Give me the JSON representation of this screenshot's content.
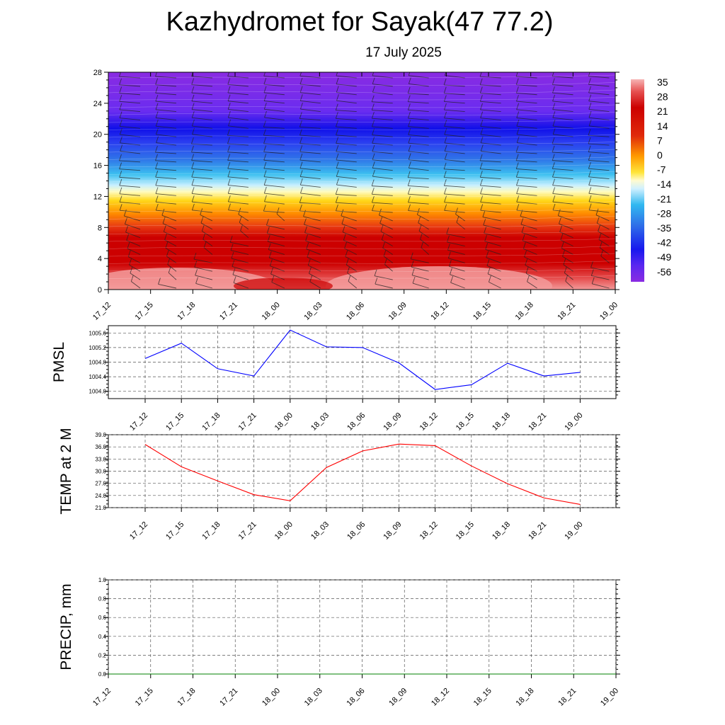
{
  "title": "Kazhydromet for Sayak(47 77.2)",
  "subtitle": "17 July 2025",
  "chart_data": [
    {
      "type": "heatmap",
      "description_units": "temperature with wind barbs, height levels",
      "x_tick_labels": [
        "17_12",
        "17_15",
        "17_18",
        "17_21",
        "18_00",
        "18_03",
        "18_06",
        "18_09",
        "18_12",
        "18_15",
        "18_18",
        "18_21",
        "19_00"
      ],
      "y_tick_labels": [
        "0",
        "4",
        "8",
        "12",
        "16",
        "20",
        "24",
        "28"
      ],
      "ylim": [
        0,
        28
      ],
      "colorbar_labels": [
        "35",
        "28",
        "21",
        "14",
        "7",
        "0",
        "-7",
        "-14",
        "-21",
        "-28",
        "-35",
        "-42",
        "-49",
        "-56"
      ],
      "colorbar_range": [
        -60,
        38
      ]
    },
    {
      "type": "line",
      "ylabel": "PMSL",
      "x": [
        "17_12",
        "17_15",
        "17_18",
        "17_21",
        "18_00",
        "18_03",
        "18_06",
        "18_09",
        "18_12",
        "18_15",
        "18_18",
        "18_21",
        "19_00"
      ],
      "y_tick_labels": [
        "1004.0",
        "1004.4",
        "1004.8",
        "1005.2",
        "1005.6"
      ],
      "ylim": [
        1003.8,
        1005.8
      ],
      "values": [
        1004.9,
        1005.32,
        1004.62,
        1004.42,
        1005.68,
        1005.22,
        1005.2,
        1004.78,
        1004.05,
        1004.18,
        1004.77,
        1004.42,
        1004.52
      ],
      "color": "#0000ff",
      "grid": true
    },
    {
      "type": "line",
      "ylabel": "TEMP at 2 M",
      "x": [
        "17_12",
        "17_15",
        "17_18",
        "17_21",
        "18_00",
        "18_03",
        "18_06",
        "18_09",
        "18_12",
        "18_15",
        "18_18",
        "18_21",
        "19_00"
      ],
      "y_tick_labels": [
        "21.0",
        "24.0",
        "27.0",
        "30.0",
        "33.0",
        "36.0",
        "39.0"
      ],
      "ylim": [
        21.0,
        39.0
      ],
      "values": [
        36.6,
        31.1,
        27.6,
        24.2,
        22.7,
        30.9,
        35.0,
        36.7,
        36.3,
        31.3,
        26.9,
        23.4,
        21.8
      ],
      "color": "#ff0000",
      "grid": true
    },
    {
      "type": "line",
      "ylabel": "PRECIP, mm",
      "x_tick_labels": [
        "17_12",
        "17_15",
        "17_18",
        "17_21",
        "18_00",
        "18_03",
        "18_06",
        "18_09",
        "18_12",
        "18_15",
        "18_18",
        "18_21",
        "19_00"
      ],
      "y_tick_labels": [
        "0.0",
        "0.2",
        "0.4",
        "0.6",
        "0.8",
        "1.0"
      ],
      "ylim": [
        0.0,
        1.0
      ],
      "values": [
        0,
        0,
        0,
        0,
        0,
        0,
        0,
        0,
        0,
        0,
        0,
        0,
        0
      ],
      "color": "#008000",
      "grid": true
    }
  ]
}
